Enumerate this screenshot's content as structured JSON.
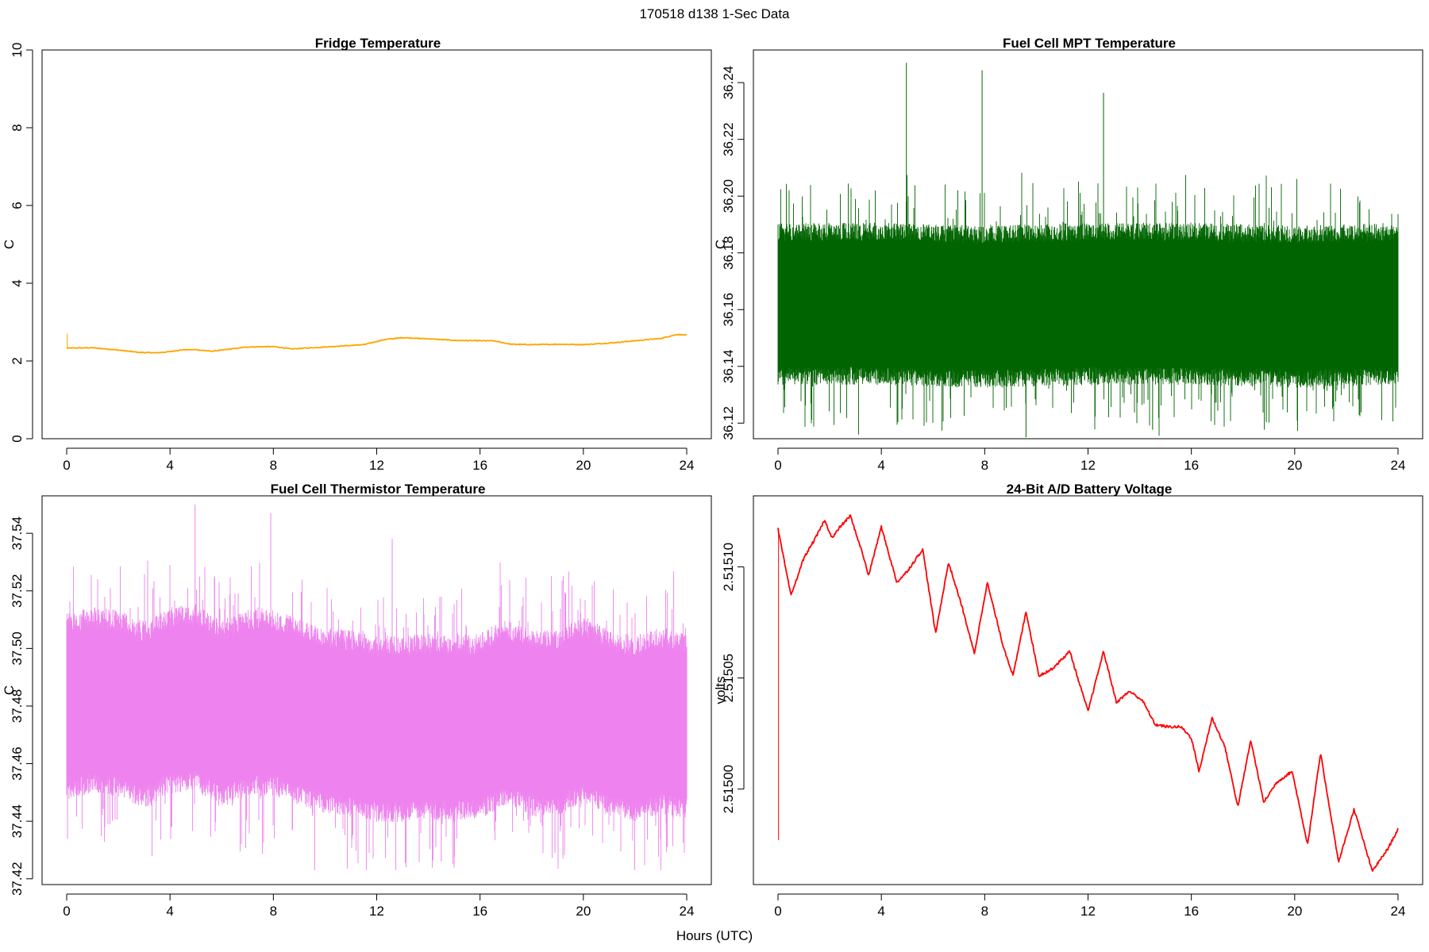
{
  "figure": {
    "title": "170518   d138   1-Sec Data",
    "xlabel": "Hours (UTC)"
  },
  "chart_data": [
    {
      "type": "line",
      "title": "Fridge Temperature",
      "xlabel": "Hours (UTC)",
      "ylabel": "C",
      "color": "#FFA500",
      "xlim": [
        0,
        24
      ],
      "ylim": [
        0,
        10
      ],
      "xticks": [
        "0",
        "4",
        "8",
        "12",
        "16",
        "20",
        "24"
      ],
      "yticks": [
        "0",
        "2",
        "4",
        "6",
        "8",
        "10"
      ],
      "ytick_values": [
        0,
        2,
        4,
        6,
        8,
        10
      ],
      "spike": {
        "x": 0.02,
        "y": 2.7
      },
      "x": [
        0,
        1,
        2,
        2.8,
        3.5,
        4,
        4.5,
        5,
        5.6,
        6,
        7,
        8,
        8.7,
        9.5,
        10.5,
        11.5,
        12.3,
        13,
        14,
        15,
        16,
        16.5,
        17.2,
        18,
        19,
        20,
        21,
        22,
        23,
        23.6,
        24
      ],
      "y": [
        2.33,
        2.34,
        2.28,
        2.22,
        2.21,
        2.24,
        2.29,
        2.29,
        2.25,
        2.28,
        2.36,
        2.37,
        2.31,
        2.34,
        2.38,
        2.42,
        2.55,
        2.6,
        2.57,
        2.53,
        2.52,
        2.52,
        2.43,
        2.42,
        2.43,
        2.42,
        2.46,
        2.52,
        2.58,
        2.68,
        2.67
      ],
      "noise": 0.01
    },
    {
      "type": "line",
      "title": "Fuel Cell MPT Temperature",
      "xlabel": "Hours (UTC)",
      "ylabel": "C",
      "color": "#006400",
      "xlim": [
        0,
        24
      ],
      "ylim": [
        36.1145,
        36.2515
      ],
      "xticks": [
        "0",
        "4",
        "8",
        "12",
        "16",
        "20",
        "24"
      ],
      "yticks": [
        "36.12",
        "36.14",
        "36.16",
        "36.18",
        "36.20",
        "36.22",
        "36.24"
      ],
      "ytick_values": [
        36.12,
        36.14,
        36.16,
        36.18,
        36.2,
        36.22,
        36.24
      ],
      "x": [
        0,
        4,
        8,
        12,
        16,
        20,
        24
      ],
      "y": [
        36.162,
        36.162,
        36.161,
        36.162,
        36.162,
        36.161,
        36.162
      ],
      "band_low": 36.135,
      "band_high": 36.188,
      "max_peak": 36.247,
      "min_trough": 36.115
    },
    {
      "type": "line",
      "title": "Fuel Cell Thermistor Temperature",
      "xlabel": "Hours (UTC)",
      "ylabel": "C",
      "color": "#EE82EE",
      "xlim": [
        0,
        24
      ],
      "ylim": [
        37.418,
        37.553
      ],
      "xticks": [
        "0",
        "4",
        "8",
        "12",
        "16",
        "20",
        "24"
      ],
      "yticks": [
        "37.42",
        "37.44",
        "37.46",
        "37.48",
        "37.50",
        "37.52",
        "37.54"
      ],
      "ytick_values": [
        37.42,
        37.44,
        37.46,
        37.48,
        37.5,
        37.52,
        37.54
      ],
      "x": [
        0,
        1,
        2,
        3,
        4,
        5,
        6,
        7,
        8,
        9,
        10,
        11,
        12,
        13,
        14,
        15,
        16,
        17,
        18,
        19,
        20,
        21,
        22,
        23,
        24
      ],
      "y": [
        37.48,
        37.482,
        37.481,
        37.477,
        37.482,
        37.483,
        37.477,
        37.481,
        37.481,
        37.478,
        37.475,
        37.474,
        37.472,
        37.472,
        37.473,
        37.472,
        37.473,
        37.478,
        37.474,
        37.474,
        37.479,
        37.474,
        37.472,
        37.475,
        37.473
      ],
      "band_low": 37.45,
      "band_high": 37.51,
      "max_peak": 37.55,
      "min_trough": 37.423
    },
    {
      "type": "line",
      "title": "24-Bit A/D Battery Voltage",
      "xlabel": "Hours (UTC)",
      "ylabel": "volts",
      "color": "#FF0000",
      "xlim": [
        0,
        24
      ],
      "ylim": [
        2.514957,
        2.515132
      ],
      "xticks": [
        "0",
        "4",
        "8",
        "12",
        "16",
        "20",
        "24"
      ],
      "yticks": [
        "2.51500",
        "2.51505",
        "2.51510"
      ],
      "ytick_values": [
        2.515,
        2.51505,
        2.5151
      ],
      "spike": {
        "x": 0.02,
        "y": 2.514977
      },
      "x": [
        0,
        0.5,
        1,
        1.5,
        1.8,
        2.1,
        2.4,
        2.8,
        3.3,
        3.5,
        4,
        4.6,
        5,
        5.6,
        6.1,
        6.6,
        7.1,
        7.6,
        8.1,
        8.7,
        9.1,
        9.6,
        10.1,
        10.6,
        11.3,
        11.6,
        12,
        12.6,
        13.1,
        13.6,
        14.1,
        14.6,
        15.1,
        15.6,
        16,
        16.3,
        16.8,
        17.3,
        17.8,
        18.3,
        18.8,
        19.3,
        19.9,
        20.5,
        21,
        21.7,
        22.3,
        23,
        23.6,
        24
      ],
      "y": [
        2.515117,
        2.515087,
        2.515104,
        2.515114,
        2.515121,
        2.515113,
        2.515118,
        2.515123,
        2.515105,
        2.515096,
        2.515118,
        2.515093,
        2.515098,
        2.515108,
        2.51507,
        2.515102,
        2.515083,
        2.515061,
        2.515093,
        2.515065,
        2.515051,
        2.51508,
        2.515051,
        2.515054,
        2.515062,
        2.51505,
        2.515035,
        2.515062,
        2.515039,
        2.515044,
        2.51504,
        2.515029,
        2.515028,
        2.515028,
        2.515023,
        2.515008,
        2.515032,
        2.515019,
        2.514992,
        2.515022,
        2.514994,
        2.515003,
        2.515008,
        2.514975,
        2.515016,
        2.514967,
        2.514991,
        2.514963,
        2.514973,
        2.514982
      ],
      "noise": 6e-07
    }
  ]
}
